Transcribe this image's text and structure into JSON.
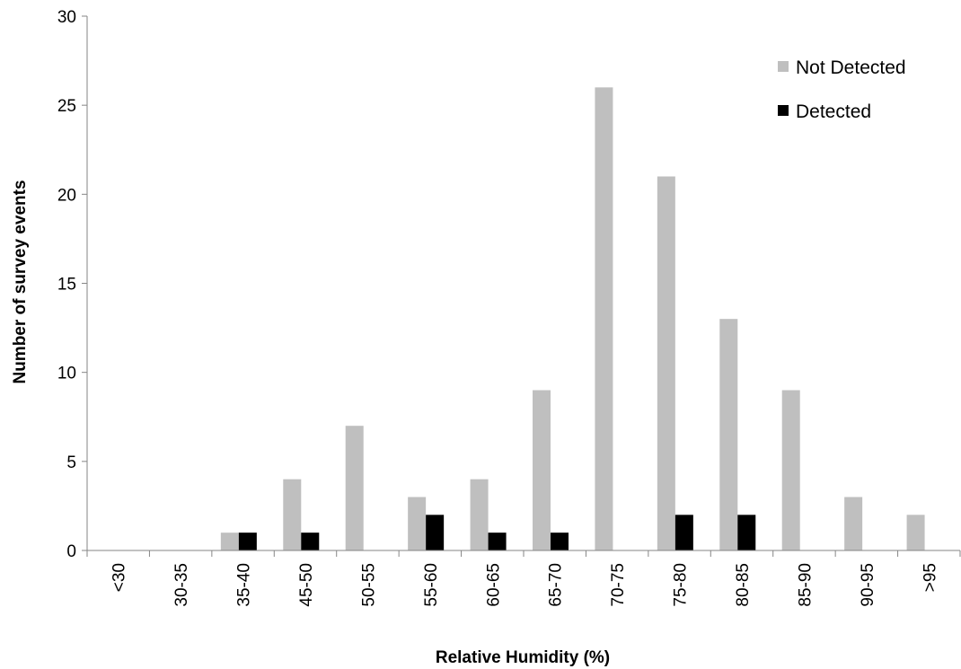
{
  "chart_data": {
    "type": "bar",
    "xlabel": "Relative Humidity (%)",
    "ylabel": "Number of survey events",
    "ylim": [
      0,
      30
    ],
    "yticks": [
      0,
      5,
      10,
      15,
      20,
      25,
      30
    ],
    "categories": [
      "<30",
      "30-35",
      "35-40",
      "45-50",
      "50-55",
      "55-60",
      "60-65",
      "65-70",
      "70-75",
      "75-80",
      "80-85",
      "85-90",
      "90-95",
      ">95"
    ],
    "series": [
      {
        "name": "Not Detected",
        "color": "#bfbfbf",
        "values": [
          0,
          0,
          1,
          4,
          7,
          3,
          4,
          9,
          26,
          21,
          13,
          9,
          3,
          2
        ]
      },
      {
        "name": "Detected",
        "color": "#000000",
        "values": [
          0,
          0,
          1,
          1,
          0,
          2,
          1,
          1,
          0,
          2,
          2,
          0,
          0,
          0
        ]
      }
    ],
    "legend_position": "top-right",
    "grid": false
  }
}
